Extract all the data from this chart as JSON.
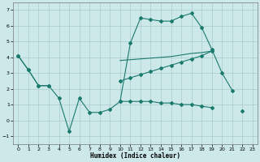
{
  "xlabel": "Humidex (Indice chaleur)",
  "bg_color": "#cce8e8",
  "line_color": "#1a7a6e",
  "grid_color": "#aacccc",
  "xlim": [
    -0.5,
    23.5
  ],
  "ylim": [
    -1.5,
    7.5
  ],
  "xticks": [
    0,
    1,
    2,
    3,
    4,
    5,
    6,
    7,
    8,
    9,
    10,
    11,
    12,
    13,
    14,
    15,
    16,
    17,
    18,
    19,
    20,
    21,
    22,
    23
  ],
  "yticks": [
    -1,
    0,
    1,
    2,
    3,
    4,
    5,
    6,
    7
  ],
  "curve1_x": [
    0,
    1,
    2,
    3,
    4,
    5,
    6,
    7,
    8,
    9,
    10,
    11,
    12,
    13,
    14,
    15,
    16,
    17,
    18,
    19,
    20,
    21
  ],
  "curve1_y": [
    4.1,
    3.2,
    2.2,
    2.2,
    1.4,
    -0.7,
    1.4,
    0.5,
    0.5,
    0.7,
    1.2,
    4.9,
    6.5,
    6.4,
    6.3,
    6.3,
    6.6,
    6.8,
    5.9,
    4.5,
    3.0,
    1.9
  ],
  "curve2_x": [
    0,
    1,
    2,
    3,
    10,
    11,
    12,
    13,
    14,
    15,
    16,
    17,
    18,
    19
  ],
  "curve2_y": [
    4.1,
    3.2,
    2.2,
    2.2,
    2.5,
    2.7,
    2.9,
    3.1,
    3.3,
    3.5,
    3.7,
    3.9,
    4.1,
    4.4
  ],
  "curve3_x": [
    10,
    11,
    12,
    13,
    14,
    15,
    16,
    17,
    18,
    19
  ],
  "curve3_y": [
    3.8,
    3.85,
    3.9,
    3.95,
    4.0,
    4.05,
    4.15,
    4.25,
    4.3,
    4.4
  ],
  "curve4_x": [
    10,
    11,
    12,
    13,
    14,
    15,
    16,
    17,
    18,
    19,
    22
  ],
  "curve4_y": [
    1.2,
    1.2,
    1.2,
    1.2,
    1.1,
    1.1,
    1.0,
    1.0,
    0.9,
    0.8,
    0.6
  ]
}
